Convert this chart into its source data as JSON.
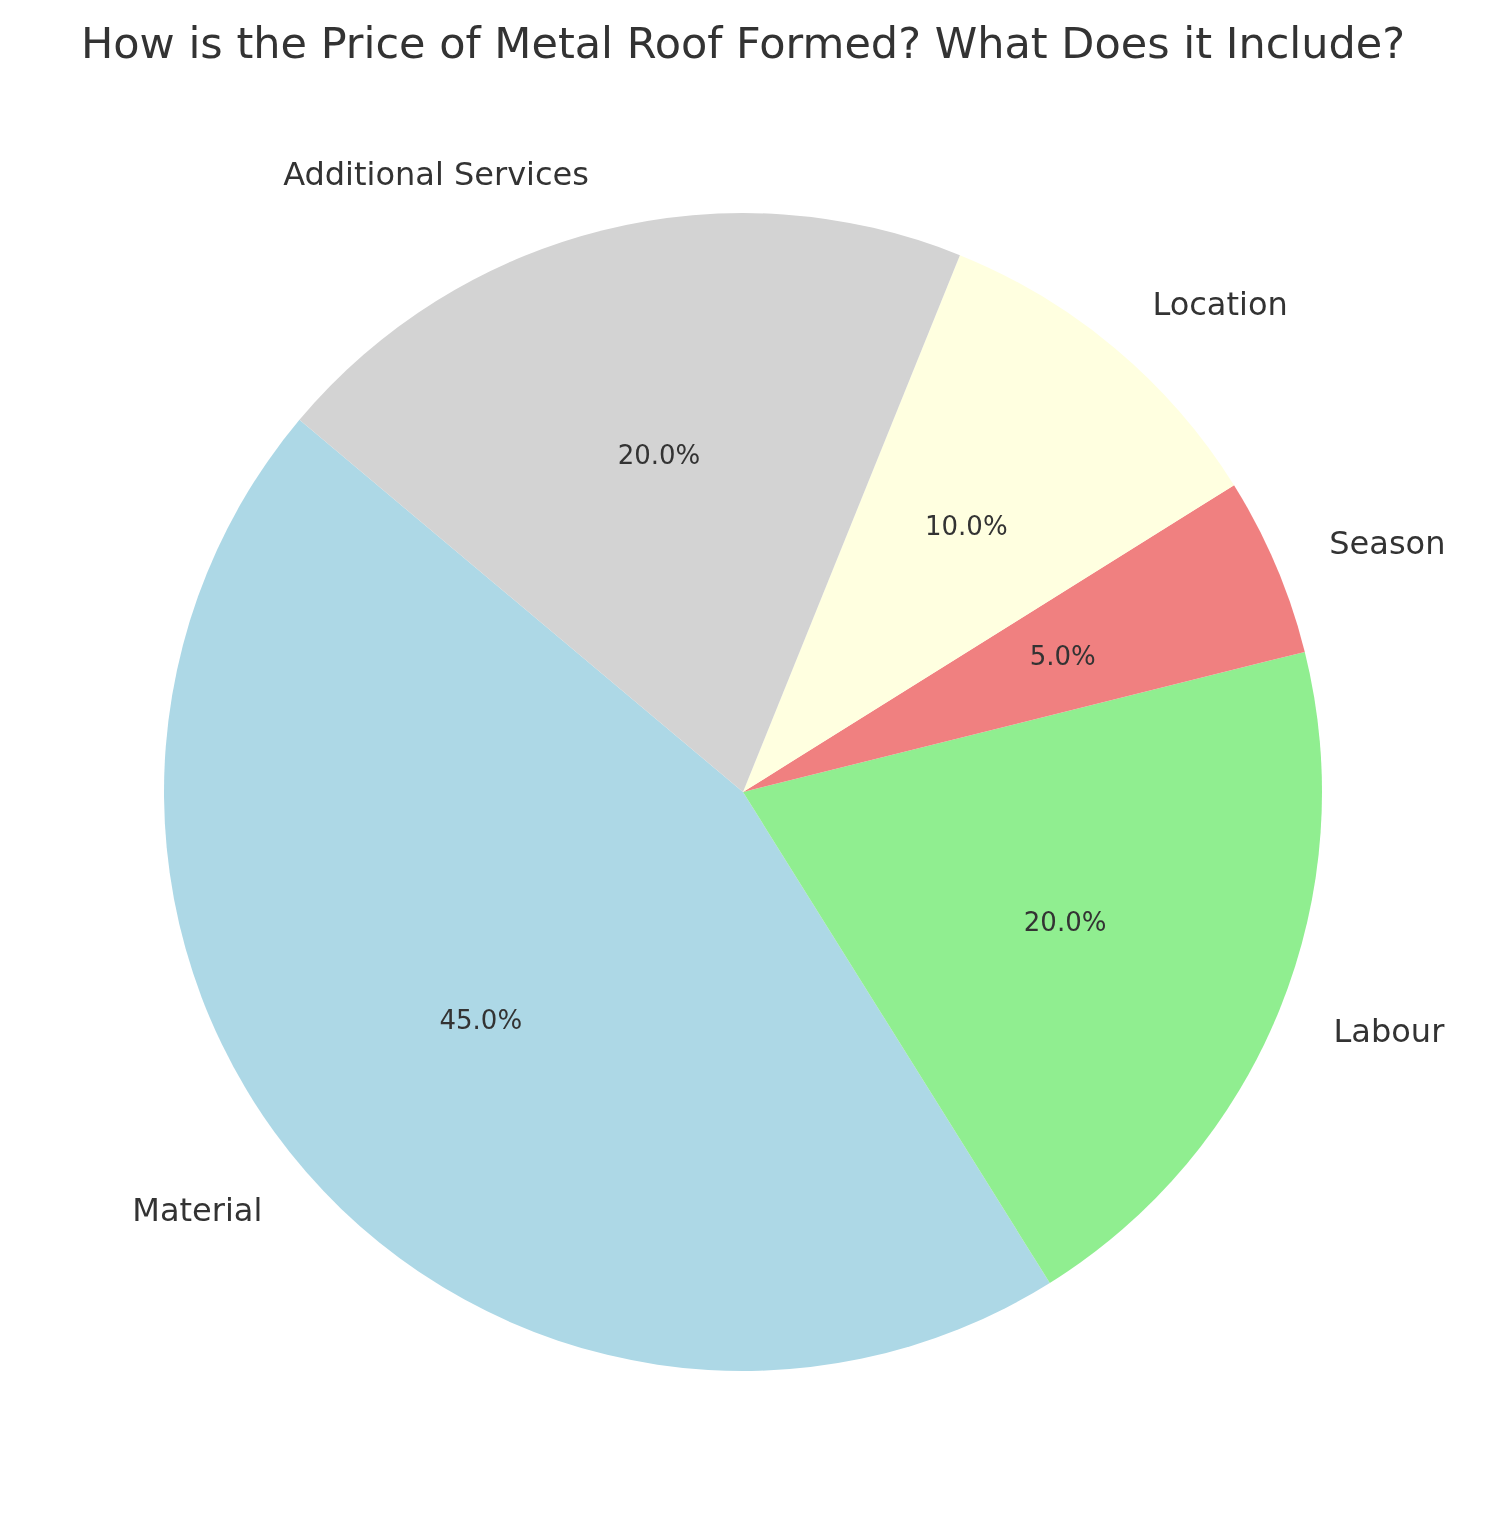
{
  "chart_data": {
    "type": "pie",
    "title": "How is the Price of Metal Roof Formed? What Does it Include?",
    "categories": [
      "Material",
      "Labour",
      "Season",
      "Location",
      "Additional Services"
    ],
    "values": [
      45,
      20,
      5,
      10,
      20
    ],
    "colors": [
      "#add8e6",
      "#90ee90",
      "#f08080",
      "#ffffe0",
      "#d3d3d3"
    ],
    "value_labels": [
      "45.0%",
      "20.0%",
      "5.0%",
      "10.0%",
      "20.0%"
    ],
    "legend": false
  }
}
